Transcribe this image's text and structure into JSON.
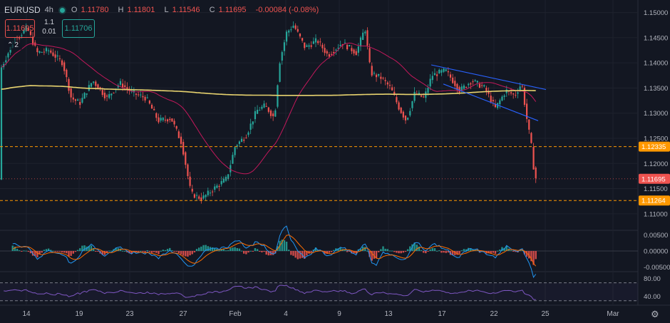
{
  "header": {
    "symbol": "EURUSD",
    "timeframe": "4h",
    "open_label": "O",
    "open": "1.11780",
    "high_label": "H",
    "high": "1.11801",
    "low_label": "L",
    "low": "1.11546",
    "close_label": "C",
    "close": "1.11695",
    "change": "-0.00084 (-0.08%)"
  },
  "trade": {
    "sell_price": "1.11695",
    "buy_price": "1.11706",
    "qty_top": "1.1",
    "spread": "0.01"
  },
  "indicators_count": "2",
  "colors": {
    "bg": "#131722",
    "up": "#26a69a",
    "down": "#ef5350",
    "ma_slow": "#e8d36f",
    "ma_fast": "#c2185b",
    "channel": "#2962ff",
    "hline": "#ff9800",
    "rsi": "#7e57c2",
    "macd": "#2196f3",
    "signal": "#ff6d00"
  },
  "chart_data": {
    "type": "candlestick",
    "price_axis": {
      "ticks": [
        "1.15000",
        "1.14500",
        "1.14000",
        "1.13500",
        "1.13000",
        "1.12500",
        "1.12000",
        "1.11500",
        "1.11000"
      ],
      "range": [
        1.107,
        1.1525
      ]
    },
    "horizontal_levels": [
      {
        "value": 1.12335,
        "label": "1.12335",
        "style": "dashed",
        "color": "#ff9800"
      },
      {
        "value": 1.11264,
        "label": "1.11264",
        "style": "dashed",
        "color": "#ff9800"
      },
      {
        "value": 1.11695,
        "label": "1.11695",
        "style": "dotted",
        "color": "#ef5350"
      }
    ],
    "x_ticks": [
      "14",
      "19",
      "23",
      "27",
      "Feb",
      "4",
      "9",
      "13",
      "17",
      "22",
      "25",
      "Mar"
    ],
    "channel": {
      "upper": [
        [
          605,
          1.1396
        ],
        [
          766,
          1.1347
        ]
      ],
      "lower": [
        [
          622,
          1.1358
        ],
        [
          755,
          1.1285
        ]
      ]
    },
    "candle_count": 120,
    "macd_axis": {
      "ticks": [
        "0.00500",
        "0.00000",
        "-0.00500"
      ],
      "range": [
        -0.0065,
        0.0065
      ]
    },
    "rsi_axis": {
      "ticks": [
        "80.00",
        "40.00"
      ],
      "range": [
        20,
        95
      ],
      "bands": [
        70,
        30
      ]
    }
  },
  "footer": {
    "settings_icon": "gear-icon"
  }
}
